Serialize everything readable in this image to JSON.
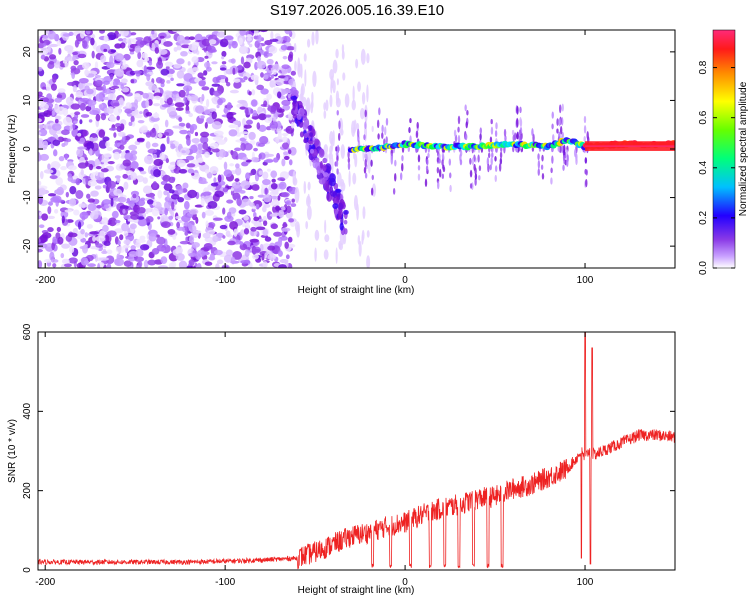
{
  "title": "S197.2026.005.16.39.E10",
  "chart_data": [
    {
      "type": "heatmap",
      "xlabel": "Height of straight line (km)",
      "ylabel": "Frequency (Hz)",
      "xlim": [
        -204,
        150
      ],
      "ylim": [
        -24.5,
        24.5
      ],
      "xticks": [
        -200,
        -100,
        0,
        100
      ],
      "yticks": [
        -20,
        -10,
        0,
        10,
        20
      ],
      "colorbar": {
        "label": "Normalized spectral amplitude",
        "range": [
          0,
          0.95
        ],
        "ticks": [
          0.0,
          0.2,
          0.4,
          0.6,
          0.8
        ],
        "colormap": [
          "#ffffff",
          "#b47cff",
          "#7a14d6",
          "#1f00ff",
          "#00e5ff",
          "#00ff44",
          "#d4ff00",
          "#ffc400",
          "#ff1a1a",
          "#ff2a7a"
        ]
      },
      "regions": [
        {
          "x": [
            -204,
            -62
          ],
          "f": [
            -24.5,
            24.5
          ],
          "description_value": "broadband noise, amplitude 0.05-0.45"
        },
        {
          "x": [
            -62,
            -30
          ],
          "f": [
            -17,
            12
          ],
          "description_value": "diagonal streak, amplitude 0.2-0.4"
        },
        {
          "x": [
            -30,
            150
          ],
          "f": [
            -1,
            2
          ],
          "description_value": "narrow carrier line near 0-1 Hz, amplitude 0.3-0.95"
        }
      ],
      "carrier_line": {
        "x": [
          -60,
          -40,
          -20,
          0,
          20,
          40,
          60,
          80,
          90,
          100,
          120,
          150
        ],
        "f": [
          4,
          0,
          0,
          1,
          0.5,
          0.5,
          1,
          0.5,
          2,
          0.5,
          1,
          1
        ]
      }
    },
    {
      "type": "line",
      "xlabel": "Height of straight line (km)",
      "ylabel": "SNR (10 * v/v)",
      "xlim": [
        -204,
        150
      ],
      "ylim": [
        0,
        600
      ],
      "xticks": [
        -200,
        -100,
        0,
        100
      ],
      "yticks": [
        0,
        200,
        400,
        600
      ],
      "color": "#ee2222",
      "series": [
        {
          "x": [
            -204,
            -180,
            -160,
            -140,
            -120,
            -100,
            -80,
            -60,
            -50,
            -40,
            -30,
            -20,
            -10,
            0,
            10,
            20,
            30,
            40,
            50,
            60,
            70,
            80,
            85,
            90,
            95,
            98,
            100,
            102,
            105,
            110,
            120,
            130,
            140,
            150
          ],
          "values": [
            20,
            20,
            20,
            20,
            20,
            22,
            25,
            30,
            45,
            65,
            85,
            95,
            110,
            120,
            140,
            155,
            165,
            180,
            185,
            205,
            215,
            235,
            245,
            255,
            280,
            300,
            280,
            300,
            290,
            300,
            320,
            340,
            340,
            335
          ],
          "spikes": [
            {
              "x": 100,
              "value": 600
            },
            {
              "x": 104,
              "value": 560
            },
            {
              "x": 98,
              "value": 30
            },
            {
              "x": 103,
              "value": 15
            }
          ],
          "dropouts_x": [
            -18,
            -8,
            3,
            14,
            22,
            30,
            38,
            46,
            54
          ]
        }
      ]
    }
  ]
}
